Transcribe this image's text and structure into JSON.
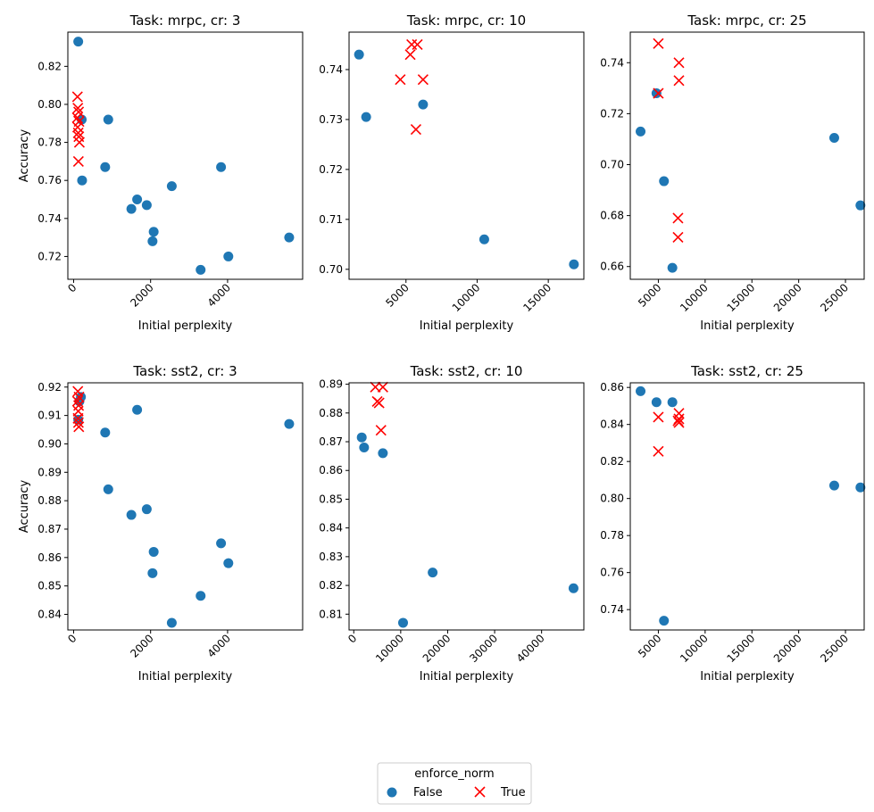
{
  "legend": {
    "title": "enforce_norm",
    "entries": [
      {
        "label": "False",
        "color": "#1f77b4",
        "marker": "circle"
      },
      {
        "label": "True",
        "color": "#ff0000",
        "marker": "x"
      }
    ]
  },
  "chart_data": [
    {
      "type": "scatter",
      "title": "Task: mrpc, cr: 3",
      "xlabel": "Initial perplexity",
      "ylabel": "Accuracy",
      "xlim": [
        -150,
        5950
      ],
      "ylim": [
        0.708,
        0.838
      ],
      "xticks": [
        0,
        2000,
        4000
      ],
      "xtick_labels": [
        "0",
        "2000",
        "4000"
      ],
      "yticks": [
        0.72,
        0.74,
        0.76,
        0.78,
        0.8,
        0.82
      ],
      "ytick_labels": [
        "0.72",
        "0.74",
        "0.76",
        "0.78",
        "0.80",
        "0.82"
      ],
      "series": [
        {
          "name": "False",
          "color": "#1f77b4",
          "marker": "circle",
          "points": [
            [
              120,
              0.833
            ],
            [
              210,
              0.792
            ],
            [
              220,
              0.76
            ],
            [
              820,
              0.767
            ],
            [
              900,
              0.792
            ],
            [
              1500,
              0.745
            ],
            [
              1650,
              0.75
            ],
            [
              1900,
              0.747
            ],
            [
              2050,
              0.728
            ],
            [
              2080,
              0.733
            ],
            [
              2550,
              0.757
            ],
            [
              3300,
              0.713
            ],
            [
              3830,
              0.767
            ],
            [
              4020,
              0.72
            ],
            [
              5600,
              0.73
            ]
          ]
        },
        {
          "name": "True",
          "color": "#ff0000",
          "marker": "x",
          "points": [
            [
              100,
              0.804
            ],
            [
              110,
              0.798
            ],
            [
              130,
              0.796
            ],
            [
              95,
              0.793
            ],
            [
              140,
              0.791
            ],
            [
              105,
              0.788
            ],
            [
              120,
              0.785
            ],
            [
              135,
              0.783
            ],
            [
              150,
              0.78
            ],
            [
              125,
              0.77
            ]
          ]
        }
      ]
    },
    {
      "type": "scatter",
      "title": "Task: mrpc, cr: 10",
      "xlabel": "Initial perplexity",
      "ylabel": "",
      "xlim": [
        1000,
        17500
      ],
      "ylim": [
        0.698,
        0.7475
      ],
      "xticks": [
        5000,
        10000,
        15000
      ],
      "xtick_labels": [
        "5000",
        "10000",
        "15000"
      ],
      "yticks": [
        0.7,
        0.71,
        0.72,
        0.73,
        0.74
      ],
      "ytick_labels": [
        "0.70",
        "0.71",
        "0.72",
        "0.73",
        "0.74"
      ],
      "series": [
        {
          "name": "False",
          "color": "#1f77b4",
          "marker": "circle",
          "points": [
            [
              1700,
              0.743
            ],
            [
              2200,
              0.7305
            ],
            [
              6200,
              0.733
            ],
            [
              10500,
              0.706
            ],
            [
              16800,
              0.701
            ]
          ]
        },
        {
          "name": "True",
          "color": "#ff0000",
          "marker": "x",
          "points": [
            [
              5400,
              0.745
            ],
            [
              5800,
              0.745
            ],
            [
              5300,
              0.743
            ],
            [
              4600,
              0.738
            ],
            [
              6200,
              0.738
            ],
            [
              5700,
              0.728
            ]
          ]
        }
      ]
    },
    {
      "type": "scatter",
      "title": "Task: mrpc, cr: 25",
      "xlabel": "Initial perplexity",
      "ylabel": "",
      "xlim": [
        2000,
        27000
      ],
      "ylim": [
        0.655,
        0.752
      ],
      "xticks": [
        5000,
        10000,
        15000,
        20000,
        25000
      ],
      "xtick_labels": [
        "5000",
        "10000",
        "15000",
        "20000",
        "25000"
      ],
      "yticks": [
        0.66,
        0.68,
        0.7,
        0.72,
        0.74
      ],
      "ytick_labels": [
        "0.66",
        "0.68",
        "0.70",
        "0.72",
        "0.74"
      ],
      "series": [
        {
          "name": "False",
          "color": "#1f77b4",
          "marker": "circle",
          "points": [
            [
              3100,
              0.713
            ],
            [
              4800,
              0.728
            ],
            [
              5600,
              0.6935
            ],
            [
              6500,
              0.6595
            ],
            [
              23800,
              0.7105
            ],
            [
              26600,
              0.684
            ]
          ]
        },
        {
          "name": "True",
          "color": "#ff0000",
          "marker": "x",
          "points": [
            [
              5000,
              0.7475
            ],
            [
              5000,
              0.728
            ],
            [
              7200,
              0.74
            ],
            [
              7200,
              0.733
            ],
            [
              7100,
              0.679
            ],
            [
              7100,
              0.6715
            ]
          ]
        }
      ]
    },
    {
      "type": "scatter",
      "title": "Task: sst2, cr: 3",
      "xlabel": "Initial perplexity",
      "ylabel": "Accuracy",
      "xlim": [
        -150,
        5950
      ],
      "ylim": [
        0.8345,
        0.9215
      ],
      "xticks": [
        0,
        2000,
        4000
      ],
      "xtick_labels": [
        "0",
        "2000",
        "4000"
      ],
      "yticks": [
        0.84,
        0.85,
        0.86,
        0.87,
        0.88,
        0.89,
        0.9,
        0.91,
        0.92
      ],
      "ytick_labels": [
        "0.84",
        "0.85",
        "0.86",
        "0.87",
        "0.88",
        "0.89",
        "0.90",
        "0.91",
        "0.92"
      ],
      "series": [
        {
          "name": "False",
          "color": "#1f77b4",
          "marker": "circle",
          "points": [
            [
              190,
              0.9165
            ],
            [
              150,
              0.915
            ],
            [
              120,
              0.9085
            ],
            [
              820,
              0.904
            ],
            [
              900,
              0.884
            ],
            [
              1500,
              0.875
            ],
            [
              1650,
              0.912
            ],
            [
              1900,
              0.877
            ],
            [
              2050,
              0.8545
            ],
            [
              2080,
              0.862
            ],
            [
              2550,
              0.837
            ],
            [
              3300,
              0.8465
            ],
            [
              3830,
              0.865
            ],
            [
              4020,
              0.858
            ],
            [
              5600,
              0.907
            ]
          ]
        },
        {
          "name": "True",
          "color": "#ff0000",
          "marker": "x",
          "points": [
            [
              110,
              0.9185
            ],
            [
              140,
              0.9165
            ],
            [
              100,
              0.915
            ],
            [
              130,
              0.9135
            ],
            [
              120,
              0.9115
            ],
            [
              115,
              0.909
            ],
            [
              125,
              0.9075
            ],
            [
              135,
              0.906
            ]
          ]
        }
      ]
    },
    {
      "type": "scatter",
      "title": "Task: sst2, cr: 10",
      "xlabel": "Initial perplexity",
      "ylabel": "",
      "xlim": [
        -1000,
        49000
      ],
      "ylim": [
        0.8045,
        0.8905
      ],
      "xticks": [
        0,
        10000,
        20000,
        30000,
        40000
      ],
      "xtick_labels": [
        "0",
        "10000",
        "20000",
        "30000",
        "40000"
      ],
      "yticks": [
        0.81,
        0.82,
        0.83,
        0.84,
        0.85,
        0.86,
        0.87,
        0.88,
        0.89
      ],
      "ytick_labels": [
        "0.81",
        "0.82",
        "0.83",
        "0.84",
        "0.85",
        "0.86",
        "0.87",
        "0.88",
        "0.89"
      ],
      "series": [
        {
          "name": "False",
          "color": "#1f77b4",
          "marker": "circle",
          "points": [
            [
              1700,
              0.8715
            ],
            [
              2200,
              0.868
            ],
            [
              6200,
              0.866
            ],
            [
              10500,
              0.807
            ],
            [
              16800,
              0.8245
            ],
            [
              46800,
              0.819
            ]
          ]
        },
        {
          "name": "True",
          "color": "#ff0000",
          "marker": "x",
          "points": [
            [
              4600,
              0.889
            ],
            [
              6200,
              0.889
            ],
            [
              5000,
              0.884
            ],
            [
              5400,
              0.8835
            ],
            [
              5800,
              0.874
            ]
          ]
        }
      ]
    },
    {
      "type": "scatter",
      "title": "Task: sst2, cr: 25",
      "xlabel": "Initial perplexity",
      "ylabel": "",
      "xlim": [
        2000,
        27000
      ],
      "ylim": [
        0.729,
        0.8625
      ],
      "xticks": [
        5000,
        10000,
        15000,
        20000,
        25000
      ],
      "xtick_labels": [
        "5000",
        "10000",
        "15000",
        "20000",
        "25000"
      ],
      "yticks": [
        0.74,
        0.76,
        0.78,
        0.8,
        0.82,
        0.84,
        0.86
      ],
      "ytick_labels": [
        "0.74",
        "0.76",
        "0.78",
        "0.80",
        "0.82",
        "0.84",
        "0.86"
      ],
      "series": [
        {
          "name": "False",
          "color": "#1f77b4",
          "marker": "circle",
          "points": [
            [
              3100,
              0.858
            ],
            [
              4800,
              0.852
            ],
            [
              6500,
              0.852
            ],
            [
              5600,
              0.734
            ],
            [
              23800,
              0.807
            ],
            [
              26600,
              0.806
            ]
          ]
        },
        {
          "name": "True",
          "color": "#ff0000",
          "marker": "x",
          "points": [
            [
              5000,
              0.844
            ],
            [
              5000,
              0.8255
            ],
            [
              7200,
              0.846
            ],
            [
              7200,
              0.843
            ],
            [
              7100,
              0.842
            ],
            [
              7200,
              0.841
            ]
          ]
        }
      ]
    }
  ]
}
